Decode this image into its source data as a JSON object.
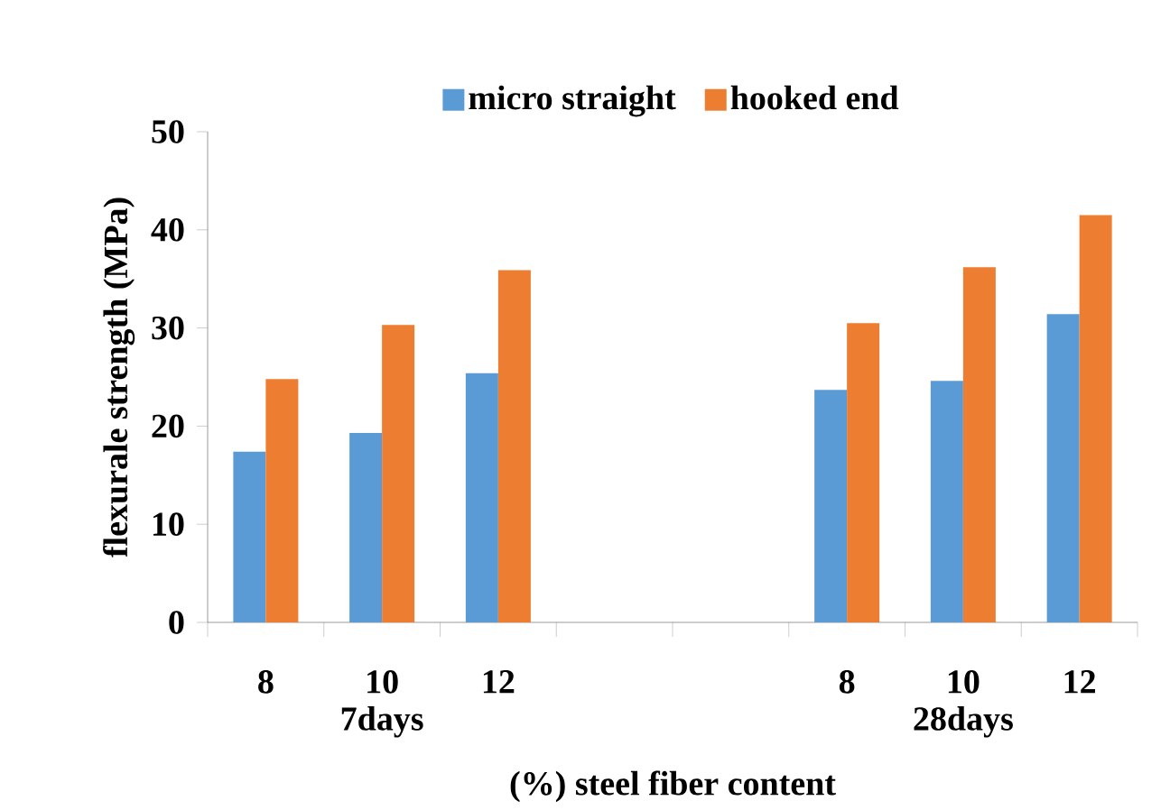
{
  "chart_data": {
    "type": "bar",
    "xlabel": "(%) steel fiber content",
    "ylabel": "flexurale strength (MPa)",
    "categories": [
      "8",
      "10",
      "12",
      null,
      null,
      "8",
      "10",
      "12"
    ],
    "series": [
      {
        "name": "micro straight",
        "color": "#5b9bd5",
        "values": [
          17.4,
          19.3,
          25.4,
          null,
          null,
          23.7,
          24.6,
          31.4
        ]
      },
      {
        "name": "hooked end",
        "color": "#ed7d31",
        "values": [
          24.8,
          30.3,
          35.9,
          null,
          null,
          30.5,
          36.2,
          41.5
        ]
      }
    ],
    "annotations": [
      "7days",
      "28days"
    ],
    "ylim": [
      0,
      50
    ],
    "yticks": [
      0,
      10,
      20,
      30,
      40,
      50
    ],
    "legend": "top",
    "grid": false
  }
}
